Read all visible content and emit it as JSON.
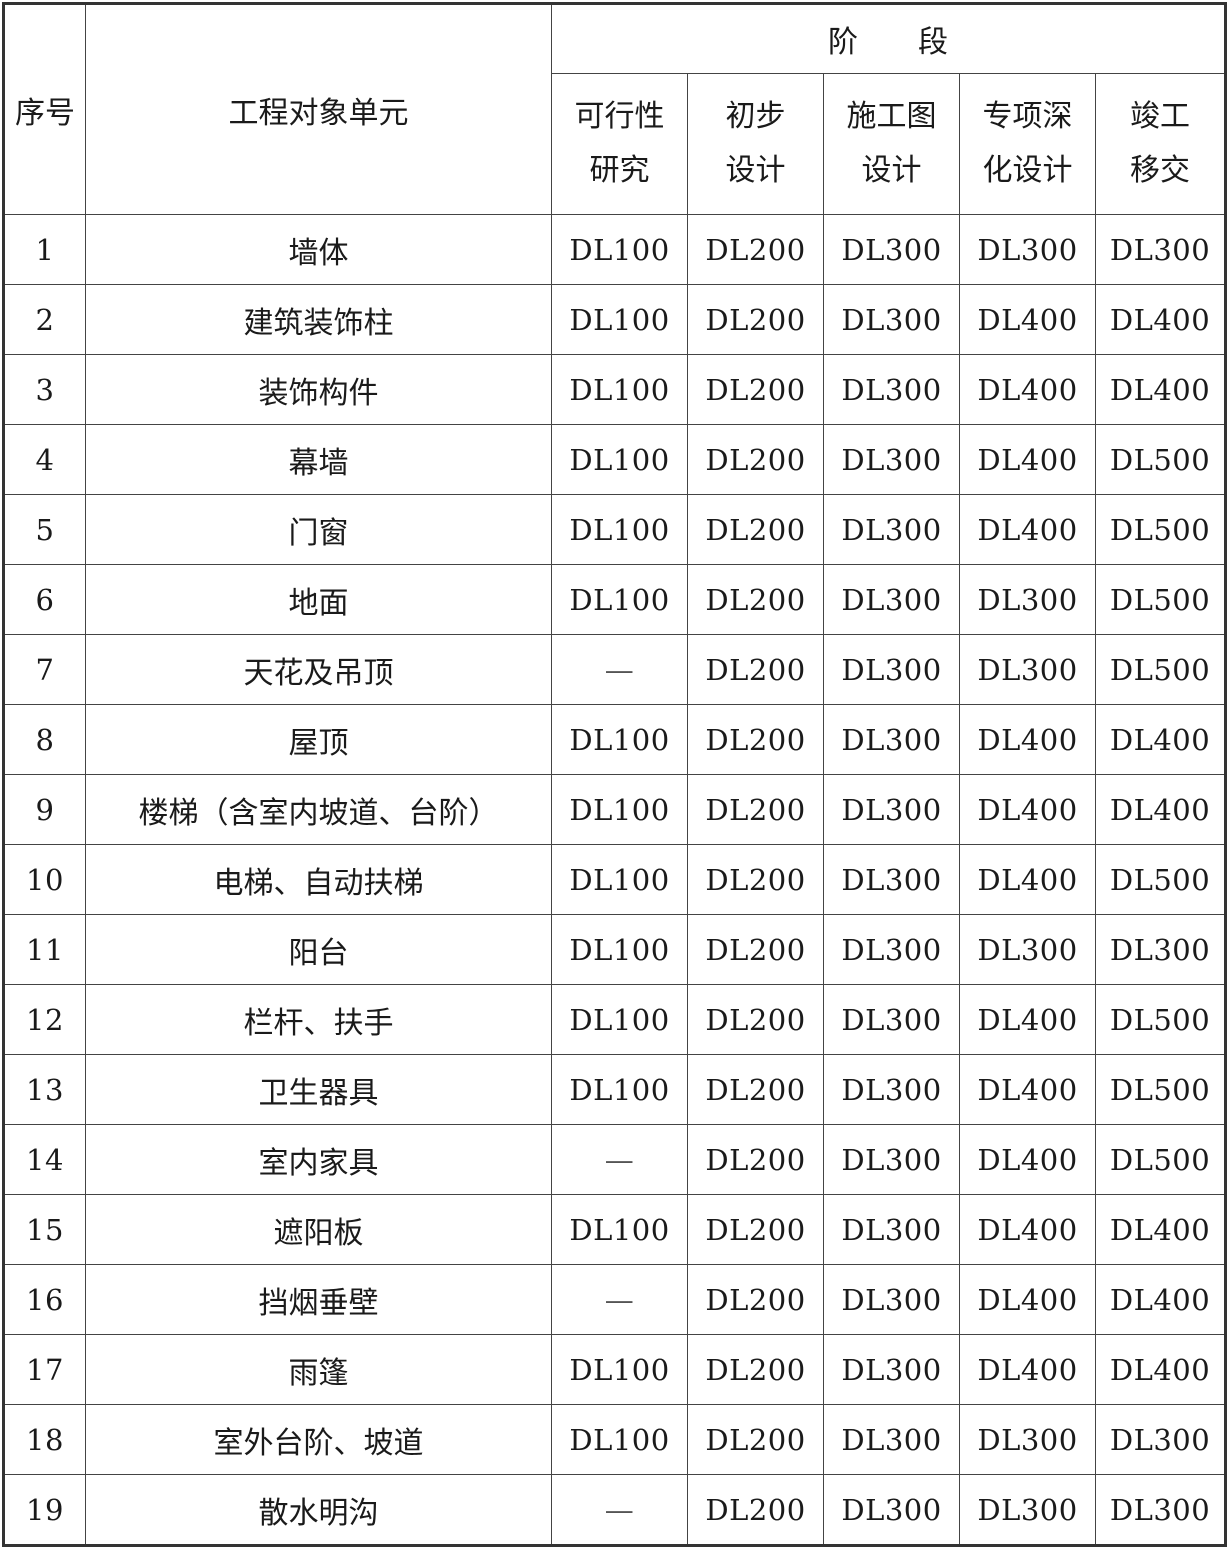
{
  "header": {
    "index": "序号",
    "unit": "工程对象单元",
    "stage": "阶　　段",
    "stages": [
      [
        "可行性",
        "研究"
      ],
      [
        "初步",
        "设计"
      ],
      [
        "施工图",
        "设计"
      ],
      [
        "专项深",
        "化设计"
      ],
      [
        "竣工",
        "移交"
      ]
    ]
  },
  "rows": [
    {
      "no": "1",
      "unit": "墙体",
      "levels": [
        "DL100",
        "DL200",
        "DL300",
        "DL300",
        "DL300"
      ]
    },
    {
      "no": "2",
      "unit": "建筑装饰柱",
      "levels": [
        "DL100",
        "DL200",
        "DL300",
        "DL400",
        "DL400"
      ]
    },
    {
      "no": "3",
      "unit": "装饰构件",
      "levels": [
        "DL100",
        "DL200",
        "DL300",
        "DL400",
        "DL400"
      ]
    },
    {
      "no": "4",
      "unit": "幕墙",
      "levels": [
        "DL100",
        "DL200",
        "DL300",
        "DL400",
        "DL500"
      ]
    },
    {
      "no": "5",
      "unit": "门窗",
      "levels": [
        "DL100",
        "DL200",
        "DL300",
        "DL400",
        "DL500"
      ]
    },
    {
      "no": "6",
      "unit": "地面",
      "levels": [
        "DL100",
        "DL200",
        "DL300",
        "DL300",
        "DL500"
      ]
    },
    {
      "no": "7",
      "unit": "天花及吊顶",
      "levels": [
        "—",
        "DL200",
        "DL300",
        "DL300",
        "DL500"
      ]
    },
    {
      "no": "8",
      "unit": "屋顶",
      "levels": [
        "DL100",
        "DL200",
        "DL300",
        "DL400",
        "DL400"
      ]
    },
    {
      "no": "9",
      "unit": "楼梯（含室内坡道、台阶）",
      "levels": [
        "DL100",
        "DL200",
        "DL300",
        "DL400",
        "DL400"
      ]
    },
    {
      "no": "10",
      "unit": "电梯、自动扶梯",
      "levels": [
        "DL100",
        "DL200",
        "DL300",
        "DL400",
        "DL500"
      ]
    },
    {
      "no": "11",
      "unit": "阳台",
      "levels": [
        "DL100",
        "DL200",
        "DL300",
        "DL300",
        "DL300"
      ]
    },
    {
      "no": "12",
      "unit": "栏杆、扶手",
      "levels": [
        "DL100",
        "DL200",
        "DL300",
        "DL400",
        "DL500"
      ]
    },
    {
      "no": "13",
      "unit": "卫生器具",
      "levels": [
        "DL100",
        "DL200",
        "DL300",
        "DL400",
        "DL500"
      ]
    },
    {
      "no": "14",
      "unit": "室内家具",
      "levels": [
        "—",
        "DL200",
        "DL300",
        "DL400",
        "DL500"
      ]
    },
    {
      "no": "15",
      "unit": "遮阳板",
      "levels": [
        "DL100",
        "DL200",
        "DL300",
        "DL400",
        "DL400"
      ]
    },
    {
      "no": "16",
      "unit": "挡烟垂壁",
      "levels": [
        "—",
        "DL200",
        "DL300",
        "DL400",
        "DL400"
      ]
    },
    {
      "no": "17",
      "unit": "雨篷",
      "levels": [
        "DL100",
        "DL200",
        "DL300",
        "DL400",
        "DL400"
      ]
    },
    {
      "no": "18",
      "unit": "室外台阶、坡道",
      "levels": [
        "DL100",
        "DL200",
        "DL300",
        "DL300",
        "DL300"
      ]
    },
    {
      "no": "19",
      "unit": "散水明沟",
      "levels": [
        "—",
        "DL200",
        "DL300",
        "DL300",
        "DL300"
      ]
    }
  ]
}
